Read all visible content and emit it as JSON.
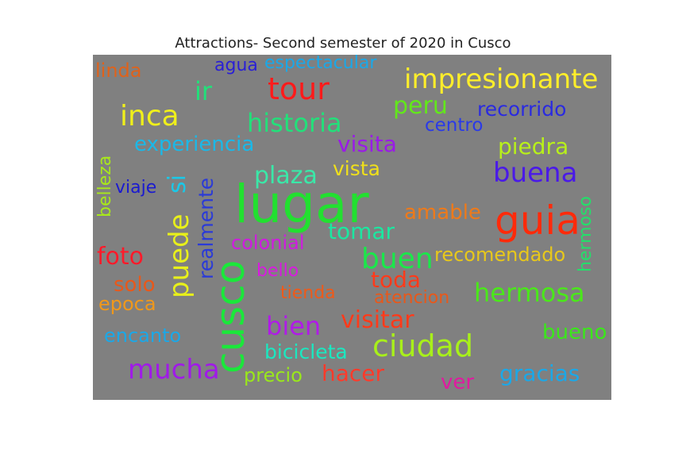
{
  "title": "Attractions- Second semester of 2020 in Cusco",
  "words": [
    {
      "text": "linda",
      "color": "#e0621a"
    },
    {
      "text": "agua",
      "color": "#2a1fd6"
    },
    {
      "text": "espectacular",
      "color": "#1aa8e8"
    },
    {
      "text": "tour",
      "color": "#ff1a1a"
    },
    {
      "text": "impresionante",
      "color": "#ffee2a"
    },
    {
      "text": "ir",
      "color": "#22e07a"
    },
    {
      "text": "peru",
      "color": "#62e81a"
    },
    {
      "text": "recorrido",
      "color": "#2a2ae0"
    },
    {
      "text": "inca",
      "color": "#f0f01a"
    },
    {
      "text": "historia",
      "color": "#22e07a"
    },
    {
      "text": "centro",
      "color": "#2a3ae8"
    },
    {
      "text": "experiencia",
      "color": "#1ab8e8"
    },
    {
      "text": "visita",
      "color": "#9a1ae8"
    },
    {
      "text": "piedra",
      "color": "#b8f01a"
    },
    {
      "text": "belleza",
      "color": "#a8e81a"
    },
    {
      "text": "viaje",
      "color": "#1a1ad0"
    },
    {
      "text": "si",
      "color": "#1ac8e8"
    },
    {
      "text": "realmente",
      "color": "#2a3ad8"
    },
    {
      "text": "plaza",
      "color": "#3ae8a8"
    },
    {
      "text": "vista",
      "color": "#f0e01a"
    },
    {
      "text": "buena",
      "color": "#4a1ae8"
    },
    {
      "text": "lugar",
      "color": "#22e030"
    },
    {
      "text": "hermoso",
      "color": "#22e06a"
    },
    {
      "text": "amable",
      "color": "#ee7a1a"
    },
    {
      "text": "guia",
      "color": "#ff2a0a"
    },
    {
      "text": "puede",
      "color": "#e8f01a"
    },
    {
      "text": "tomar",
      "color": "#1ae8a0"
    },
    {
      "text": "colonial",
      "color": "#d01ae0"
    },
    {
      "text": "foto",
      "color": "#ff1a2a"
    },
    {
      "text": "buen",
      "color": "#1ae84a"
    },
    {
      "text": "recomendado",
      "color": "#e8c81a"
    },
    {
      "text": "solo",
      "color": "#e8581a"
    },
    {
      "text": "bello",
      "color": "#d81ae0"
    },
    {
      "text": "toda",
      "color": "#ff3a1a"
    },
    {
      "text": "cusco",
      "color": "#1ae83a"
    },
    {
      "text": "epoca",
      "color": "#f0981a"
    },
    {
      "text": "tienda",
      "color": "#ee5a1a"
    },
    {
      "text": "atencion",
      "color": "#e8581a"
    },
    {
      "text": "hermosa",
      "color": "#4ae81a"
    },
    {
      "text": "bien",
      "color": "#b01ae8"
    },
    {
      "text": "visitar",
      "color": "#ff3a1a"
    },
    {
      "text": "encanto",
      "color": "#1aa8e8"
    },
    {
      "text": "bueno",
      "color": "#3ae81a"
    },
    {
      "text": "bicicleta",
      "color": "#1ae8c0"
    },
    {
      "text": "ciudad",
      "color": "#a8f01a"
    },
    {
      "text": "mucha",
      "color": "#a01ae8"
    },
    {
      "text": "precio",
      "color": "#9ae81a"
    },
    {
      "text": "hacer",
      "color": "#ff3a2a"
    },
    {
      "text": "gracias",
      "color": "#1aa8e8"
    },
    {
      "text": "ver",
      "color": "#e01aa0"
    }
  ]
}
